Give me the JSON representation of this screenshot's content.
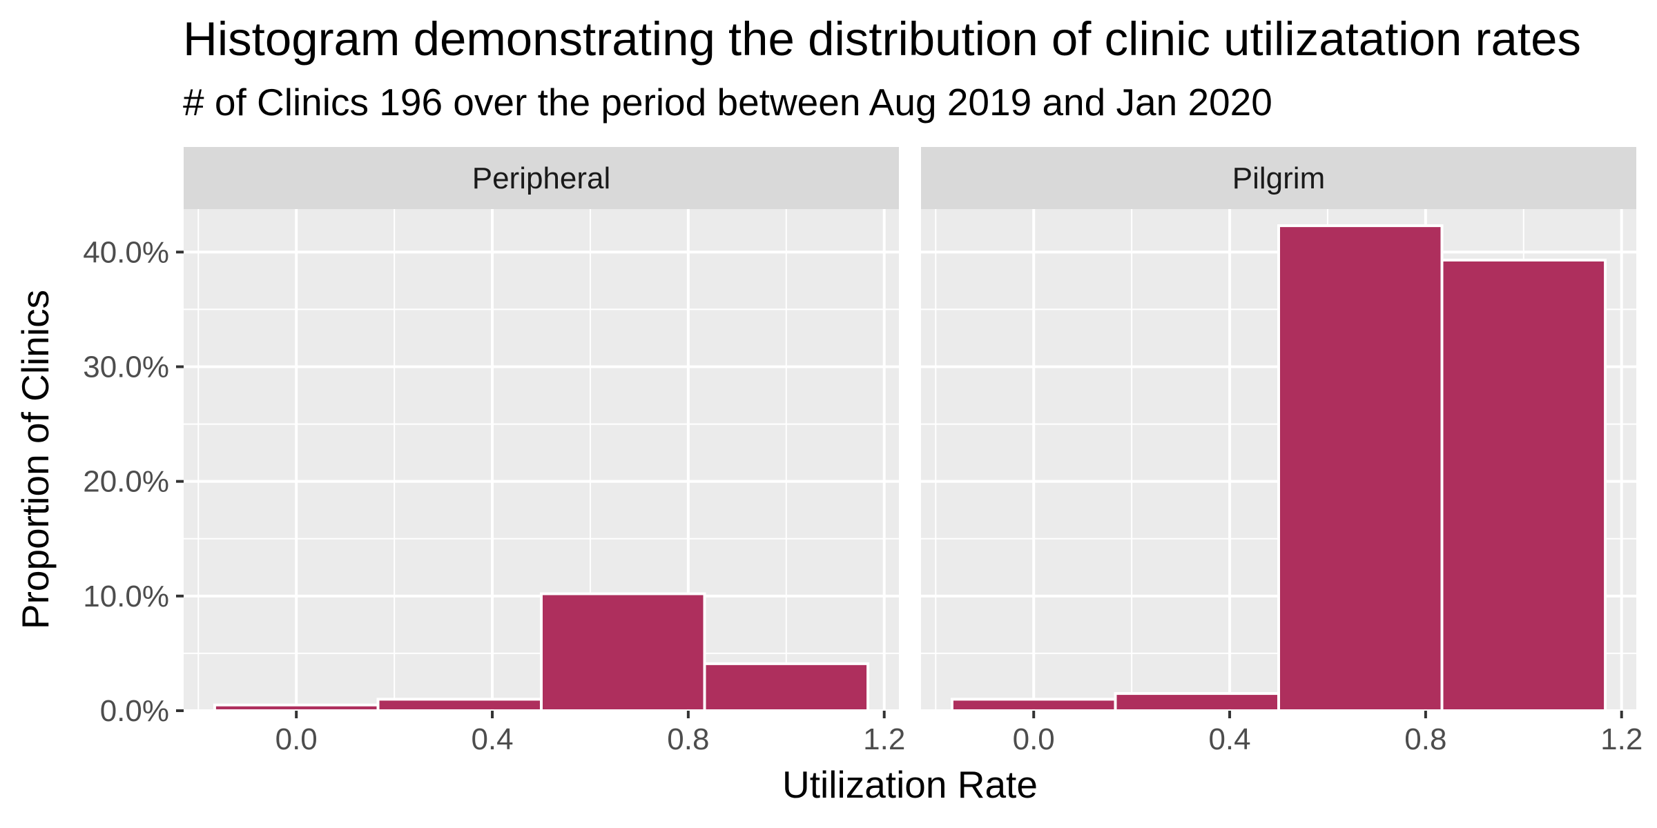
{
  "chart_data": {
    "type": "bar",
    "title": "Histogram demonstrating the distribution of clinic utilizatation rates",
    "subtitle": "# of Clinics 196 over the period between Aug 2019 and Jan 2020",
    "xlabel": "Utilization Rate",
    "ylabel": "Proportion of Clinics",
    "xlim": [
      -0.23,
      1.23
    ],
    "ylim": [
      0,
      0.4375
    ],
    "x_ticks": [
      0.0,
      0.4,
      0.8,
      1.2
    ],
    "x_tick_labels": [
      "0.0",
      "0.4",
      "0.8",
      "1.2"
    ],
    "y_ticks": [
      0.0,
      0.1,
      0.2,
      0.3,
      0.4
    ],
    "y_tick_labels": [
      "0.0%",
      "10.0%",
      "20.0%",
      "30.0%",
      "40.0%"
    ],
    "bin_edges": [
      -0.1667,
      0.1667,
      0.5,
      0.8333,
      1.1667
    ],
    "grid": true,
    "legend": "none",
    "bar_color": "#AE2F5D",
    "panel_color": "#EBEBEB",
    "strip_color": "#D9D9D9",
    "facets": [
      {
        "name": "Peripheral",
        "values": [
          0.005,
          0.01,
          0.102,
          0.041
        ]
      },
      {
        "name": "Pilgrim",
        "values": [
          0.01,
          0.015,
          0.423,
          0.393
        ]
      }
    ]
  }
}
